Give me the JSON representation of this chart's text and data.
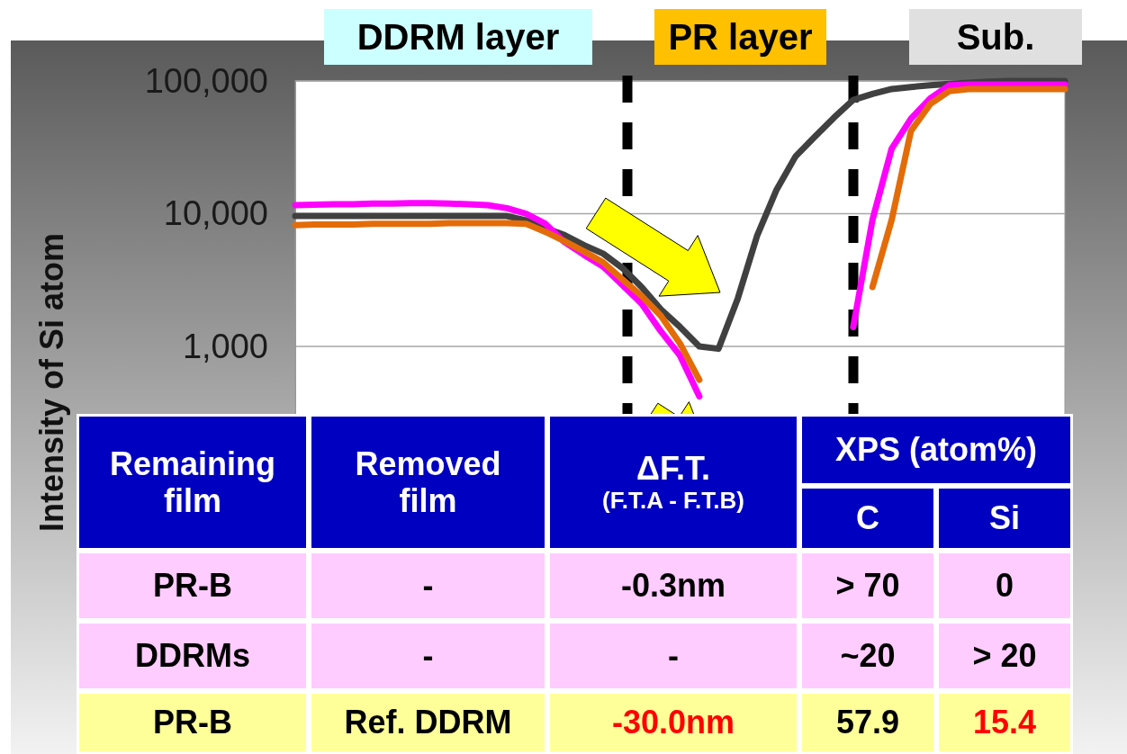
{
  "chart_data": [
    {
      "type": "line",
      "ylabel": "Intensity of Si atom",
      "log": "y",
      "ylim": [
        10,
        100000
      ],
      "yticks": [
        {
          "value": 1000,
          "label": "1,000"
        },
        {
          "value": 10000,
          "label": "10,000"
        },
        {
          "value": 100000,
          "label": "100,000"
        }
      ],
      "tick_labels": "y",
      "grid": "y",
      "categories": [
        null,
        null,
        null,
        null,
        null,
        null,
        null,
        null,
        null,
        null,
        null,
        null,
        null,
        null,
        null,
        null,
        null,
        null,
        null,
        null,
        null,
        null,
        null,
        null,
        null,
        null,
        null,
        null,
        null,
        null,
        null,
        null,
        null,
        null,
        null,
        null,
        null,
        null,
        null,
        null,
        null
      ],
      "annotations": [
        "DDRM layer",
        "PR layer",
        "Sub."
      ],
      "series": [
        {
          "color": "#ff00ff",
          "values": [
            11600,
            11700,
            11800,
            11800,
            11900,
            11900,
            12000,
            12000,
            11900,
            11800,
            11600,
            11000,
            10000,
            8400,
            6100,
            4900,
            4000,
            2900,
            2100,
            1300,
            850,
            420,
            null,
            null,
            null,
            null,
            null,
            null,
            null,
            1400,
            9000,
            31000,
            52000,
            74000,
            93000,
            94000,
            94000,
            94000,
            94000,
            94000,
            94000
          ]
        },
        {
          "color": "#404040",
          "values": [
            9600,
            9600,
            9600,
            9600,
            9600,
            9600,
            9600,
            9600,
            9600,
            9600,
            9600,
            9600,
            8900,
            7800,
            6900,
            5800,
            5000,
            3900,
            2800,
            1900,
            1400,
            1000,
            960,
            2300,
            6800,
            15000,
            27000,
            38000,
            53000,
            72000,
            80000,
            87000,
            90000,
            93000,
            95000,
            97000,
            99000,
            100000,
            100000,
            100000,
            100000
          ]
        },
        {
          "color": "#e36c09",
          "values": [
            8200,
            8300,
            8300,
            8300,
            8400,
            8400,
            8400,
            8400,
            8500,
            8500,
            8500,
            8500,
            8400,
            7300,
            6200,
            5200,
            4300,
            3200,
            2400,
            1700,
            1050,
            560,
            null,
            null,
            null,
            null,
            null,
            null,
            null,
            null,
            2800,
            9000,
            42000,
            67000,
            84000,
            87000,
            87000,
            87000,
            87000,
            87000,
            87000
          ]
        }
      ]
    },
    {
      "type": "other",
      "annotations": [
        "Remaining film",
        "Removed film",
        "ΔF.T.",
        "(F.T.A - F.T.B)",
        "XPS (atom%)",
        "C",
        "Si",
        "PR-B",
        "-",
        "-0.3nm",
        "> 70",
        "0",
        "DDRMs",
        "-",
        "-",
        "~20",
        "> 20",
        "PR-B",
        "Ref. DDRM",
        "-30.0nm",
        "57.9",
        "15.4"
      ]
    }
  ]
}
